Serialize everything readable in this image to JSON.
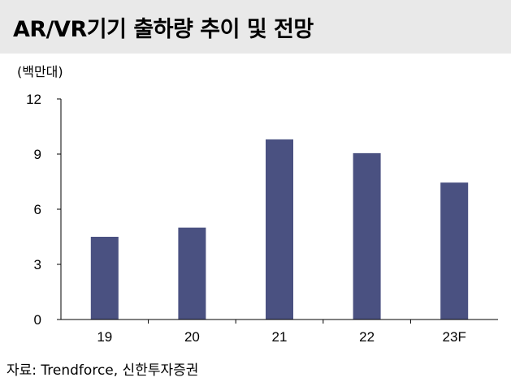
{
  "header": {
    "title": "AR/VR기기 출하량 추이 및 전망"
  },
  "unit_label": "(백만대)",
  "source": "자료: Trendforce, 신한투자증권",
  "colors": {
    "bar": "#4a5181",
    "header_bg": "#e9e9e9",
    "axis": "#000000"
  },
  "chart_data": {
    "type": "bar",
    "categories": [
      "19",
      "20",
      "21",
      "22",
      "23F"
    ],
    "values": [
      4.5,
      5.0,
      9.8,
      9.05,
      7.45
    ],
    "title": "AR/VR기기 출하량 추이 및 전망",
    "xlabel": "",
    "ylabel": "(백만대)",
    "ylim": [
      0,
      12
    ],
    "yticks": [
      0,
      3,
      6,
      9,
      12
    ],
    "grid": false,
    "legend": "none"
  }
}
